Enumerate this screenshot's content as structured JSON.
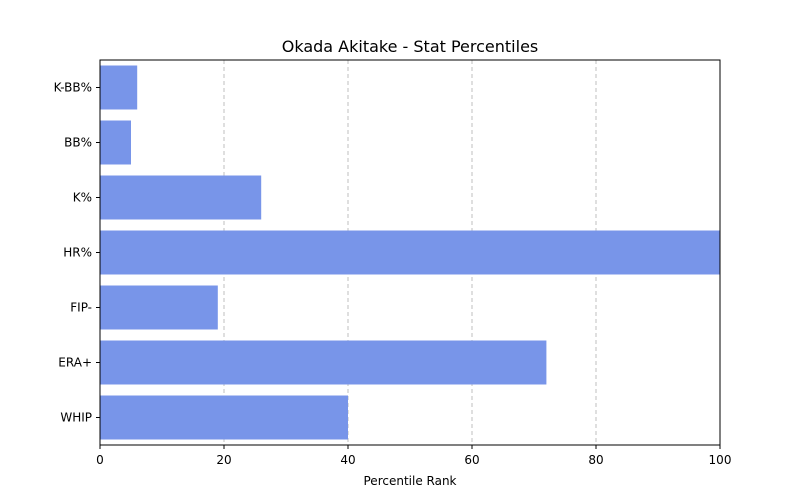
{
  "chart_data": {
    "type": "bar",
    "orientation": "horizontal",
    "title": "Okada Akitake - Stat Percentiles",
    "xlabel": "Percentile Rank",
    "ylabel": "",
    "categories": [
      "WHIP",
      "ERA+",
      "FIP-",
      "HR%",
      "K%",
      "BB%",
      "K-BB%"
    ],
    "values": [
      40,
      72,
      19,
      100,
      26,
      5,
      6
    ],
    "xlim": [
      0,
      100
    ],
    "xticks": [
      0,
      20,
      40,
      60,
      80,
      100
    ],
    "grid": "x-dashed",
    "legend": "none",
    "bar_color": "#7895e9"
  }
}
